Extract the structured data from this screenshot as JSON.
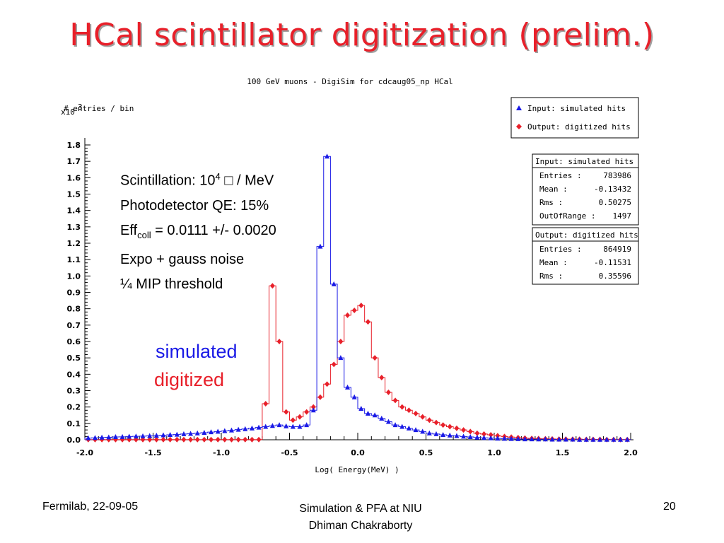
{
  "slide": {
    "title": "HCal scintillator digitization (prelim.)",
    "footer_left": "Fermilab, 22-09-05",
    "footer_center_line1": "Simulation & PFA at NIU",
    "footer_center_line2": "Dhiman Chakraborty",
    "page_number": "20"
  },
  "annotations": {
    "scint_prefix": "Scintillation: 10",
    "scint_exp": "4",
    "scint_suffix": " □ / MeV",
    "qe": "Photodetector QE:  15%",
    "eff_prefix": "Eff",
    "eff_sub": "coll",
    "eff_suffix": " = 0.0111 +/- 0.0020",
    "noise": "Expo + gauss noise",
    "threshold": "¼ MIP threshold",
    "label_simulated": "simulated",
    "label_digitized": "digitized"
  },
  "chart_data": {
    "type": "line",
    "title": "100 GeV muons - DigiSim for cdcaug05_np HCal",
    "xlabel": "Log( Energy(MeV) )",
    "ylabel": "# entries / bin",
    "y_multiplier": "x10",
    "y_multiplier_exp": "3",
    "xlim": [
      -2.0,
      2.0
    ],
    "ylim": [
      0.0,
      1.8
    ],
    "x_ticks": [
      "-2.0",
      "-1.5",
      "-1.0",
      "-0.5",
      "0.0",
      "0.5",
      "1.0",
      "1.5",
      "2.0"
    ],
    "y_ticks": [
      "0.0",
      "0.1",
      "0.2",
      "0.3",
      "0.4",
      "0.5",
      "0.6",
      "0.7",
      "0.8",
      "0.9",
      "1.0",
      "1.1",
      "1.2",
      "1.3",
      "1.4",
      "1.5",
      "1.6",
      "1.7",
      "1.8"
    ],
    "bin_width": 0.05,
    "legend_placement": "top-right",
    "colors": {
      "simulated": "#1a1ae6",
      "digitized": "#e8202a"
    },
    "series": [
      {
        "name": "Input: simulated hits",
        "marker": "triangle",
        "values": [
          0.01,
          0.012,
          0.014,
          0.015,
          0.017,
          0.018,
          0.02,
          0.021,
          0.022,
          0.024,
          0.026,
          0.028,
          0.03,
          0.032,
          0.035,
          0.037,
          0.04,
          0.043,
          0.047,
          0.05,
          0.054,
          0.058,
          0.062,
          0.066,
          0.07,
          0.075,
          0.08,
          0.085,
          0.09,
          0.083,
          0.08,
          0.08,
          0.09,
          0.18,
          1.18,
          1.73,
          0.95,
          0.5,
          0.32,
          0.26,
          0.19,
          0.16,
          0.15,
          0.13,
          0.11,
          0.09,
          0.08,
          0.07,
          0.06,
          0.05,
          0.04,
          0.035,
          0.03,
          0.027,
          0.024,
          0.02,
          0.017,
          0.014,
          0.012,
          0.01,
          0.008,
          0.007,
          0.006,
          0.005,
          0.004,
          0.004,
          0.003,
          0.003,
          0.002,
          0.002,
          0.002,
          0.002,
          0.001,
          0.001,
          0.001,
          0.001,
          0.001,
          0.001,
          0.001,
          0.001
        ]
      },
      {
        "name": "Output: digitized hits",
        "marker": "diamond",
        "values": [
          0.001,
          0.001,
          0.001,
          0.001,
          0.001,
          0.001,
          0.001,
          0.001,
          0.001,
          0.001,
          0.001,
          0.001,
          0.001,
          0.001,
          0.001,
          0.001,
          0.001,
          0.001,
          0.001,
          0.001,
          0.001,
          0.001,
          0.001,
          0.001,
          0.001,
          0.001,
          0.22,
          0.94,
          0.6,
          0.17,
          0.12,
          0.14,
          0.17,
          0.2,
          0.26,
          0.34,
          0.46,
          0.6,
          0.76,
          0.79,
          0.82,
          0.72,
          0.5,
          0.38,
          0.29,
          0.24,
          0.2,
          0.18,
          0.16,
          0.14,
          0.12,
          0.105,
          0.09,
          0.08,
          0.07,
          0.06,
          0.05,
          0.04,
          0.035,
          0.03,
          0.025,
          0.02,
          0.016,
          0.013,
          0.01,
          0.008,
          0.007,
          0.006,
          0.005,
          0.004,
          0.004,
          0.003,
          0.003,
          0.002,
          0.002,
          0.002,
          0.001,
          0.001,
          0.001,
          0.001
        ]
      }
    ],
    "stats_boxes": [
      {
        "title": "Input: simulated hits",
        "rows": [
          {
            "label": "Entries :",
            "value": "783986"
          },
          {
            "label": "Mean :",
            "value": "-0.13432"
          },
          {
            "label": "Rms :",
            "value": "0.50275"
          },
          {
            "label": "OutOfRange :",
            "value": "1497"
          }
        ]
      },
      {
        "title": "Output: digitized hits",
        "rows": [
          {
            "label": "Entries :",
            "value": "864919"
          },
          {
            "label": "Mean :",
            "value": "-0.11531"
          },
          {
            "label": "Rms :",
            "value": "0.35596"
          }
        ]
      }
    ]
  }
}
